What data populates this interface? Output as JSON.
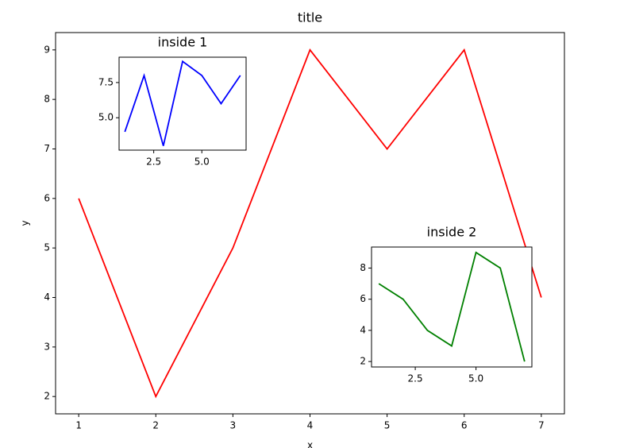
{
  "chart_data": [
    {
      "type": "line",
      "title": "title",
      "x_label": "x",
      "y_label": "y",
      "x": [
        1,
        2,
        3,
        4,
        5,
        6,
        7
      ],
      "series": [
        {
          "color": "#ff0000",
          "values": [
            6,
            2,
            5,
            9,
            7,
            9,
            4
          ]
        }
      ],
      "xlim": [
        0.7,
        7.3
      ],
      "ylim": [
        1.65,
        9.35
      ],
      "xticks": [
        1,
        2,
        3,
        4,
        5,
        6,
        7
      ],
      "yticks": [
        2,
        3,
        4,
        5,
        6,
        7,
        8,
        9
      ]
    },
    {
      "type": "line",
      "title": "inside 1",
      "x": [
        1,
        2,
        3,
        4,
        5,
        6,
        7
      ],
      "series": [
        {
          "color": "#0000ff",
          "values": [
            4,
            8,
            3,
            9,
            8,
            6,
            8
          ]
        }
      ],
      "xlim": [
        0.7,
        7.3
      ],
      "ylim": [
        2.7,
        9.3
      ],
      "xticks": [
        2.5,
        {
          "value": 5,
          "label": "5.0"
        }
      ],
      "yticks": [
        {
          "value": 5,
          "label": "5.0"
        },
        7.5
      ]
    },
    {
      "type": "line",
      "title": "inside 2",
      "x": [
        1,
        2,
        3,
        4,
        5,
        6,
        7
      ],
      "series": [
        {
          "color": "#008000",
          "values": [
            7,
            6,
            4,
            3,
            9,
            8,
            2
          ]
        }
      ],
      "xlim": [
        0.7,
        7.3
      ],
      "ylim": [
        1.65,
        9.35
      ],
      "xticks": [
        2.5,
        {
          "value": 5,
          "label": "5.0"
        }
      ],
      "yticks": [
        2,
        4,
        6,
        8
      ]
    }
  ]
}
